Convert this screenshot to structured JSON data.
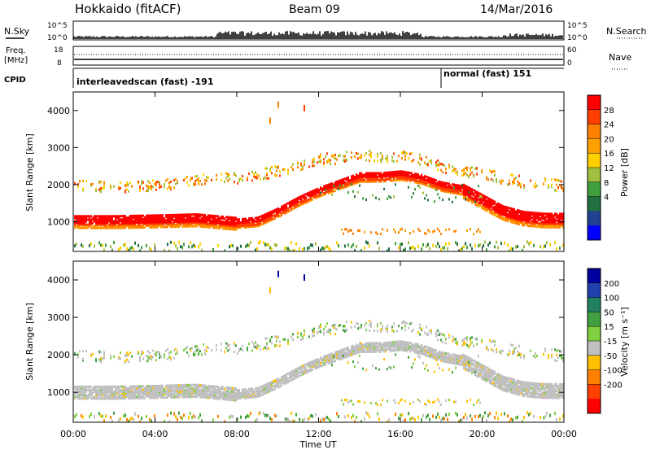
{
  "header": {
    "station": "Hokkaido (fitACF)",
    "beam": "Beam 09",
    "date": "14/Mar/2016"
  },
  "left_labels": {
    "nsky": "N.Sky",
    "freq_line1": "Freq.",
    "freq_line2": "[MHz]",
    "cpid": "CPID"
  },
  "right_labels": {
    "nsearch": "N.Search",
    "nave": "Nave"
  },
  "strip_ticks": {
    "noise_top": "10^5",
    "noise_bottom": "10^0",
    "freq_top": "18",
    "freq_bottom": "8",
    "nave_top": "60",
    "nave_bottom": "0"
  },
  "cpid_segments": [
    {
      "label": "interleavedscan (fast) -191",
      "start_hour": 0
    },
    {
      "label": "normal (fast) 151",
      "start_hour": 18
    }
  ],
  "colorbars": {
    "power": {
      "label": "Power [dB]",
      "ticks": [
        "28",
        "24",
        "20",
        "16",
        "12",
        "8",
        "4"
      ],
      "colors": [
        "#ff0000",
        "#ff4000",
        "#ff8000",
        "#ffa000",
        "#ffd000",
        "#a0c040",
        "#40a040",
        "#207040",
        "#204090",
        "#0000ff"
      ]
    },
    "velocity": {
      "label": "Velocity [m s⁻¹]",
      "ticks": [
        "200",
        "100",
        "50",
        "15",
        "-15",
        "-50",
        "-100",
        "-200"
      ],
      "colors": [
        "#0000a0",
        "#2040b0",
        "#208060",
        "#40a040",
        "#80d040",
        "#c0c0c0",
        "#ffc000",
        "#ff8000",
        "#ff4000",
        "#ff0000"
      ]
    }
  },
  "chart_data": [
    {
      "type": "heatmap",
      "name": "power",
      "ylabel": "Slant Range [km]",
      "xlabel": "Time UT",
      "xlim": [
        0,
        24
      ],
      "ylim": [
        200,
        4500
      ],
      "x_ticks": [
        "00:00",
        "04:00",
        "08:00",
        "12:00",
        "16:00",
        "20:00",
        "00:00"
      ],
      "y_ticks": [
        1000,
        2000,
        3000,
        4000
      ],
      "ground_scatter_band_km": [
        [
          0,
          1050
        ],
        [
          2,
          1050
        ],
        [
          4,
          1070
        ],
        [
          6,
          1100
        ],
        [
          8,
          1000
        ],
        [
          9,
          1050
        ],
        [
          10,
          1300
        ],
        [
          11,
          1600
        ],
        [
          12,
          1850
        ],
        [
          13,
          2050
        ],
        [
          14,
          2250
        ],
        [
          15,
          2250
        ],
        [
          16,
          2300
        ],
        [
          17,
          2200
        ],
        [
          18,
          2000
        ],
        [
          19,
          1900
        ],
        [
          20,
          1600
        ],
        [
          21,
          1300
        ],
        [
          22,
          1150
        ],
        [
          23,
          1100
        ],
        [
          24,
          1100
        ]
      ],
      "ionospheric_echo_km": [
        [
          0,
          2000
        ],
        [
          2,
          1950
        ],
        [
          4,
          2000
        ],
        [
          6,
          2150
        ],
        [
          8,
          2200
        ],
        [
          10,
          2400
        ],
        [
          12,
          2700
        ],
        [
          14,
          2800
        ],
        [
          16,
          2800
        ],
        [
          17,
          2700
        ],
        [
          18,
          2500
        ],
        [
          20,
          2300
        ],
        [
          22,
          2100
        ],
        [
          24,
          2000
        ]
      ]
    },
    {
      "type": "heatmap",
      "name": "velocity",
      "ylabel": "Slant Range [km]",
      "xlabel": "Time UT",
      "xlim": [
        0,
        24
      ],
      "ylim": [
        200,
        4500
      ],
      "x_ticks": [
        "00:00",
        "04:00",
        "08:00",
        "12:00",
        "16:00",
        "20:00",
        "00:00"
      ],
      "y_ticks": [
        1000,
        2000,
        3000,
        4000
      ]
    }
  ]
}
